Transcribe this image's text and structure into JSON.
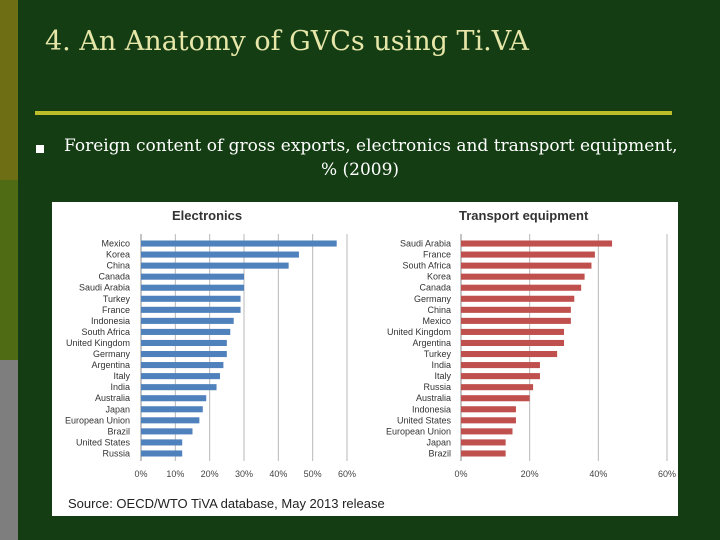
{
  "slide": {
    "title": "4. An Anatomy of GVCs using Ti.VA",
    "subtitle_line1": "Foreign content of gross exports, electronics and transport equipment,",
    "subtitle_line2": "% (2009)",
    "source": "Source: OECD/WTO TiVA database, May 2013 release"
  },
  "colors": {
    "electronics": "#4f81bd",
    "transport": "#c0504d"
  },
  "chart_data": [
    {
      "type": "bar",
      "orientation": "horizontal",
      "title": "Electronics",
      "categories": [
        "Mexico",
        "Korea",
        "China",
        "Canada",
        "Saudi Arabia",
        "Turkey",
        "France",
        "Indonesia",
        "South Africa",
        "United Kingdom",
        "Germany",
        "Argentina",
        "Italy",
        "India",
        "Australia",
        "Japan",
        "European Union",
        "Brazil",
        "United States",
        "Russia"
      ],
      "values": [
        57,
        46,
        43,
        30,
        30,
        29,
        29,
        27,
        26,
        25,
        25,
        24,
        23,
        22,
        19,
        18,
        17,
        15,
        12,
        12
      ],
      "xlim": [
        0,
        60
      ],
      "xticks": [
        "0%",
        "10%",
        "20%",
        "30%",
        "40%",
        "50%",
        "60%"
      ],
      "grid": true
    },
    {
      "type": "bar",
      "orientation": "horizontal",
      "title": "Transport equipment",
      "categories": [
        "Saudi Arabia",
        "France",
        "South Africa",
        "Korea",
        "Canada",
        "Germany",
        "China",
        "Mexico",
        "United Kingdom",
        "Argentina",
        "Turkey",
        "India",
        "Italy",
        "Russia",
        "Australia",
        "Indonesia",
        "United States",
        "European Union",
        "Japan",
        "Brazil"
      ],
      "values": [
        44,
        39,
        38,
        36,
        35,
        33,
        32,
        32,
        30,
        30,
        28,
        23,
        23,
        21,
        20,
        16,
        16,
        15,
        13,
        13
      ],
      "xlim": [
        0,
        60
      ],
      "xticks": [
        "0%",
        "20%",
        "40%",
        "60%"
      ],
      "grid": true
    }
  ]
}
